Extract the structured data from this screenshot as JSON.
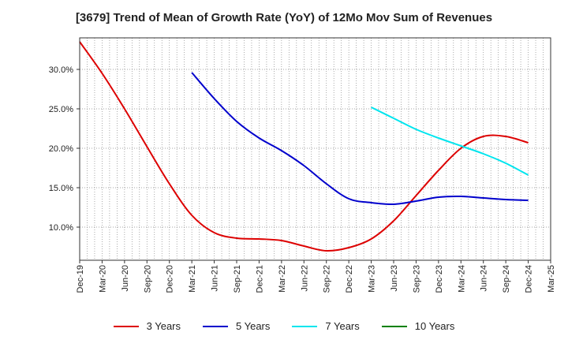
{
  "chart_data": {
    "type": "line",
    "title": "[3679]  Trend of Mean of Growth Rate (YoY) of 12Mo Mov Sum of Revenues",
    "xlabel": "",
    "ylabel": "",
    "categories": [
      "Dec-19",
      "Mar-20",
      "Jun-20",
      "Sep-20",
      "Dec-20",
      "Mar-21",
      "Jun-21",
      "Sep-21",
      "Dec-21",
      "Mar-22",
      "Jun-22",
      "Sep-22",
      "Dec-22",
      "Mar-23",
      "Jun-23",
      "Sep-23",
      "Dec-23",
      "Mar-24",
      "Jun-24",
      "Sep-24",
      "Dec-24",
      "Mar-25"
    ],
    "ylim": [
      5.8,
      34.0
    ],
    "y_ticks": [
      10,
      15,
      20,
      25,
      30
    ],
    "y_tick_labels": [
      "10.0%",
      "15.0%",
      "20.0%",
      "25.0%",
      "30.0%"
    ],
    "grid": true,
    "series": [
      {
        "name": "3 Years",
        "color": "#dd0000",
        "values": [
          33.5,
          29.5,
          25.0,
          20.2,
          15.5,
          11.5,
          9.3,
          8.6,
          8.5,
          8.3,
          7.6,
          7.0,
          7.4,
          8.5,
          10.8,
          14.0,
          17.2,
          20.0,
          21.5,
          21.5,
          20.7,
          null
        ]
      },
      {
        "name": "5 Years",
        "color": "#0000cc",
        "values": [
          null,
          null,
          null,
          null,
          null,
          29.6,
          26.3,
          23.4,
          21.3,
          19.7,
          17.8,
          15.5,
          13.6,
          13.1,
          12.9,
          13.3,
          13.8,
          13.9,
          13.7,
          13.5,
          13.4,
          null
        ]
      },
      {
        "name": "7 Years",
        "color": "#00e5ee",
        "values": [
          null,
          null,
          null,
          null,
          null,
          null,
          null,
          null,
          null,
          null,
          null,
          null,
          null,
          25.2,
          23.8,
          22.4,
          21.3,
          20.3,
          19.3,
          18.1,
          16.6,
          null
        ]
      },
      {
        "name": "10 Years",
        "color": "#008000",
        "values": [
          null,
          null,
          null,
          null,
          null,
          null,
          null,
          null,
          null,
          null,
          null,
          null,
          null,
          null,
          null,
          null,
          null,
          null,
          null,
          null,
          null,
          null
        ]
      }
    ]
  }
}
